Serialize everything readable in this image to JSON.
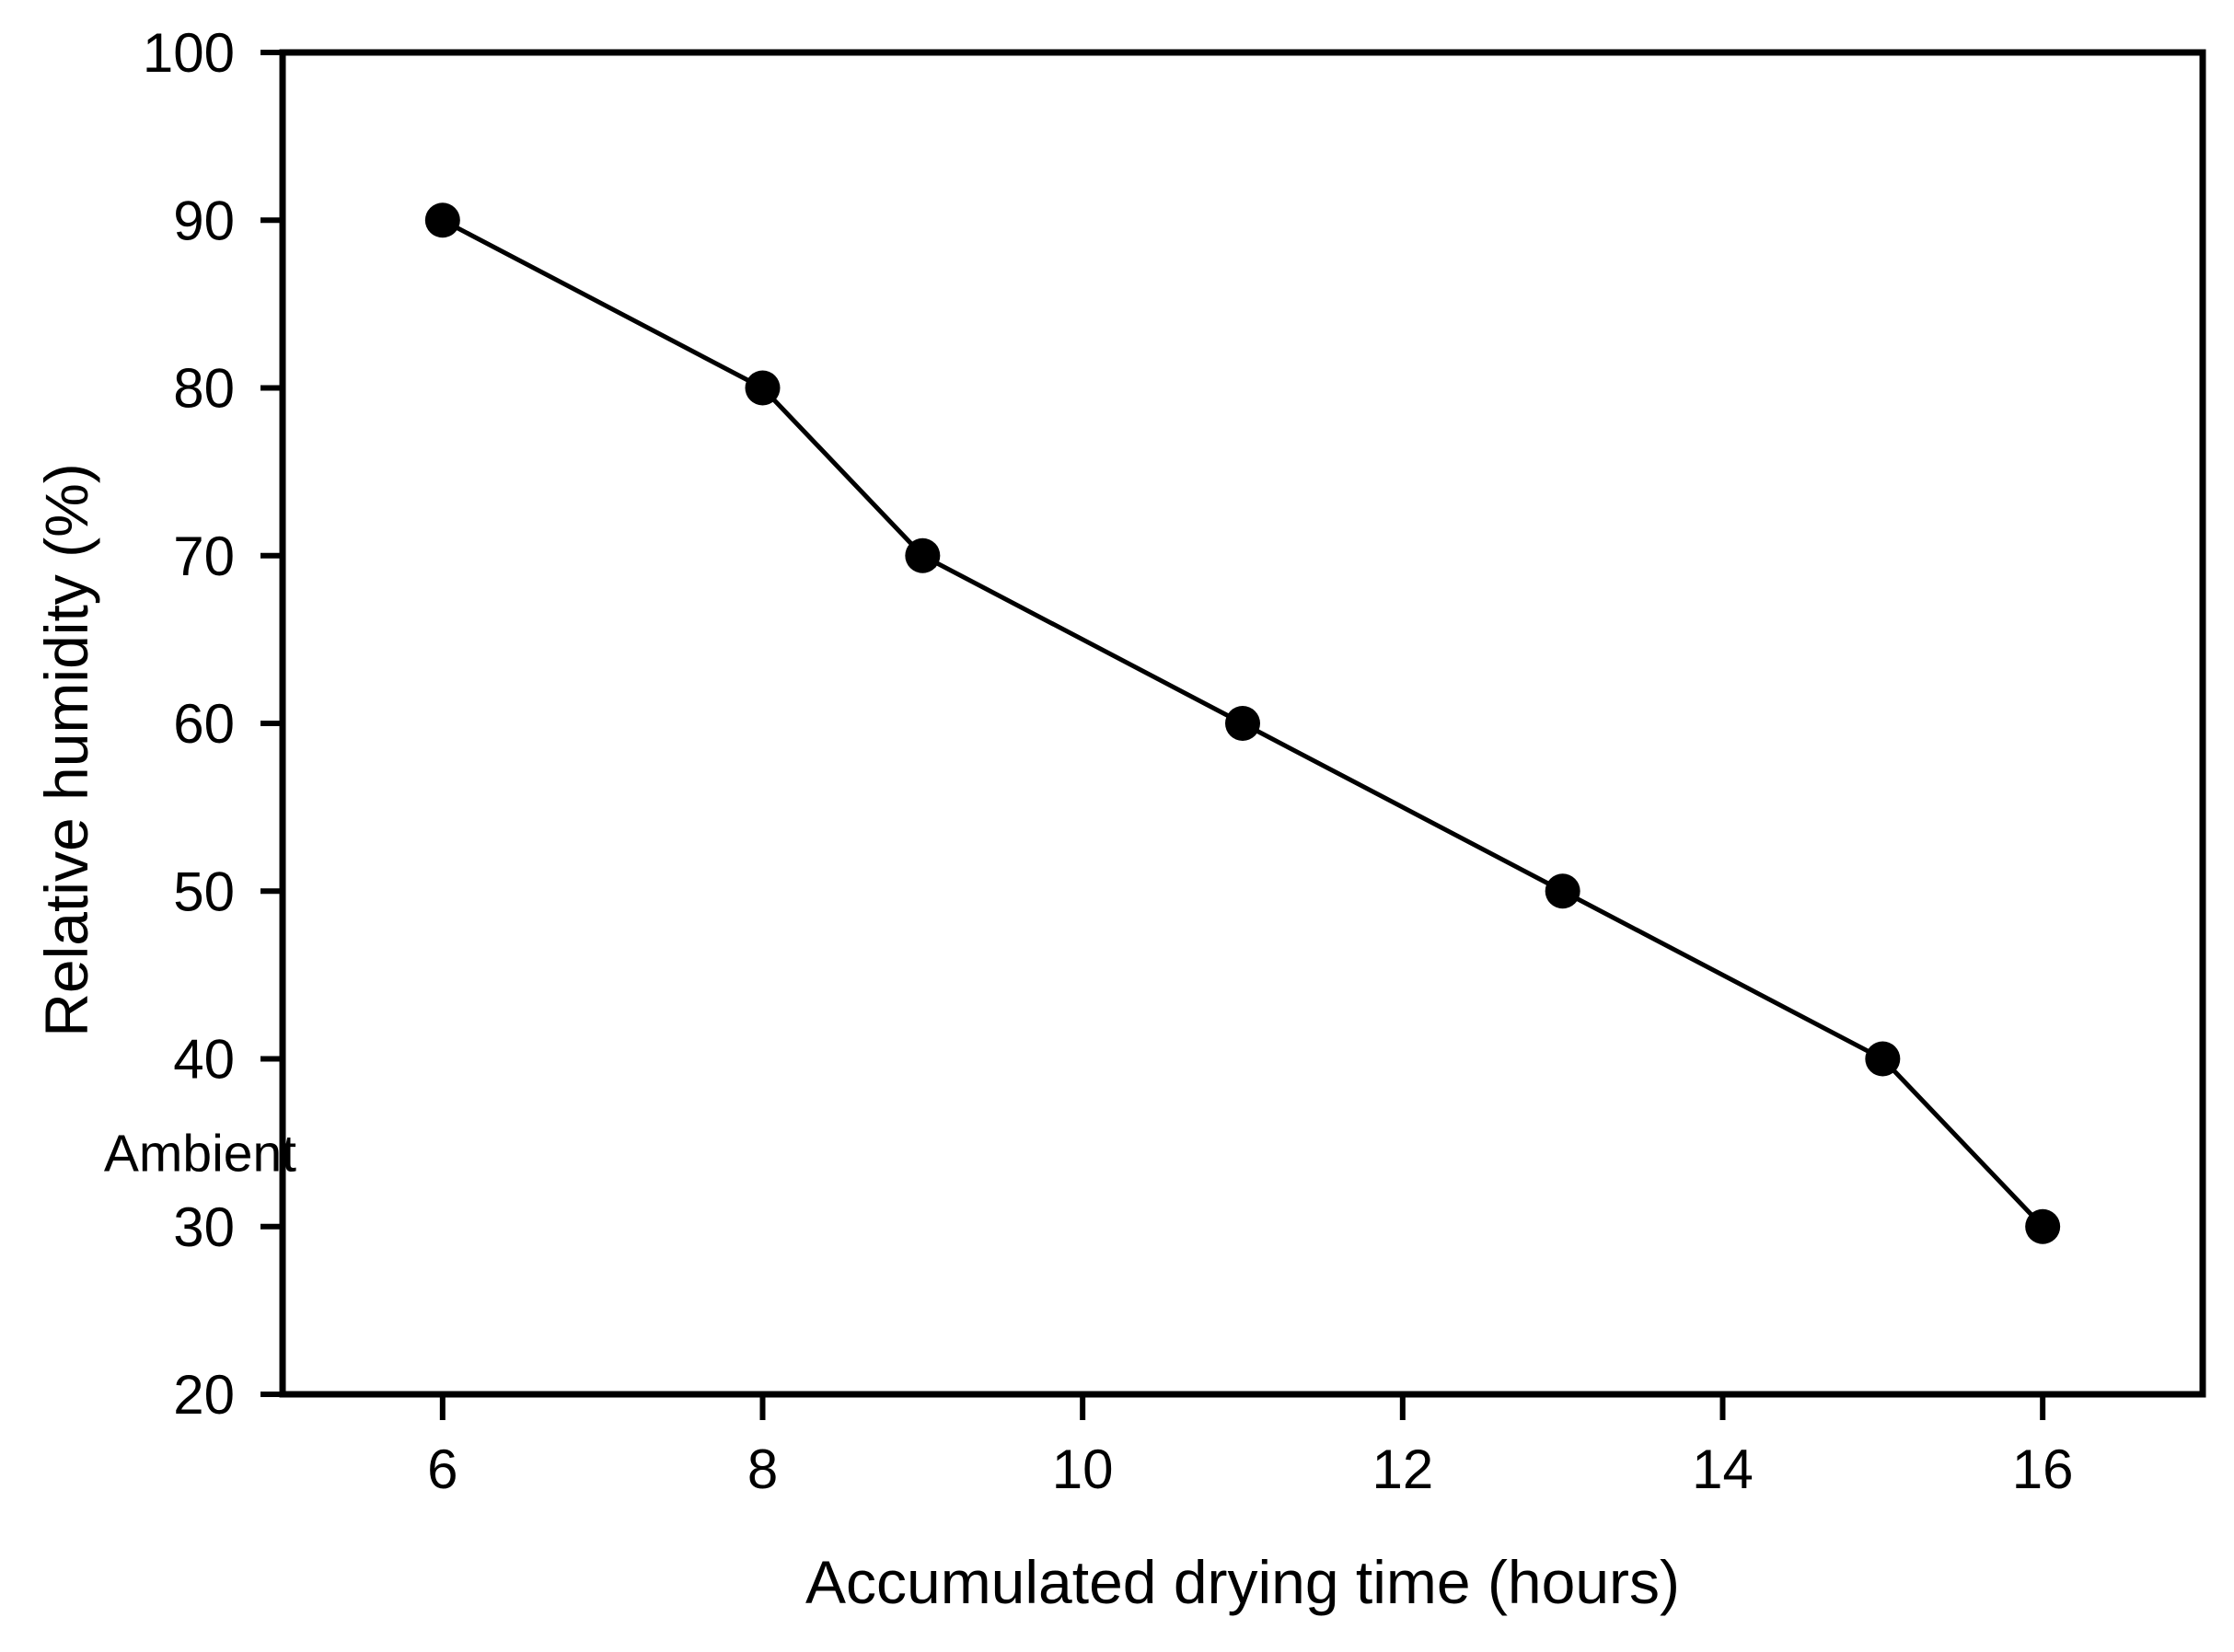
{
  "chart_data": {
    "type": "line",
    "title": "",
    "xlabel": "Accumulated drying time (hours)",
    "ylabel": "Relative humidity (%)",
    "series": [
      {
        "marker": "filled-circle",
        "line_style": "solid",
        "points": [
          {
            "x": 6,
            "y": 90
          },
          {
            "x": 8,
            "y": 80
          },
          {
            "x": 9,
            "y": 70
          },
          {
            "x": 11,
            "y": 60
          },
          {
            "x": 13,
            "y": 50
          },
          {
            "x": 15,
            "y": 40
          },
          {
            "x": 16,
            "y": 30
          }
        ]
      }
    ],
    "xlim": [
      5,
      17
    ],
    "ylim": [
      20,
      100
    ],
    "xticks": [
      6,
      8,
      10,
      12,
      14,
      16
    ],
    "yticks": [
      20,
      30,
      40,
      50,
      60,
      70,
      80,
      90,
      100
    ],
    "grid": false,
    "legend_position": "none",
    "annotations": [
      {
        "text": "Ambient",
        "y": 34.4,
        "position": "left-of-y-axis"
      }
    ],
    "colors": {
      "line": "#000000",
      "marker": "#000000",
      "frame": "#000000",
      "text": "#000000",
      "background": "#ffffff"
    }
  }
}
